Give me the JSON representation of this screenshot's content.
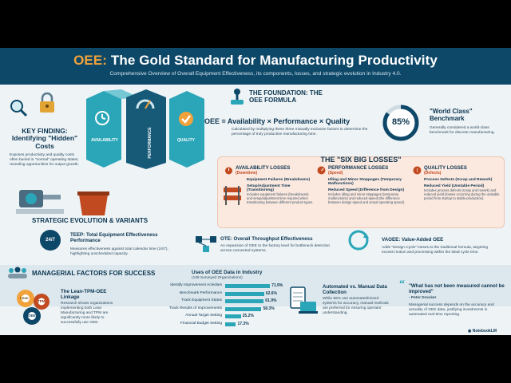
{
  "header": {
    "title_accent": "OEE:",
    "title_rest": "The Gold Standard for Manufacturing Productivity",
    "subtitle": "Comprehensive Overview of Overall Equipment Effectiveness, its components, losses, and strategic evolution in Industry 4.0."
  },
  "key_finding": {
    "title": "KEY FINDING: Identifying \"Hidden\" Costs",
    "text": "Exposes productivity and quality costs often buried in \"normal\" operating states, revealing opportunities for output growth."
  },
  "pillars": [
    "AVAILABILITY",
    "PERFORMANCE",
    "QUALITY"
  ],
  "foundation": {
    "title": "THE FOUNDATION: THE OEE FORMULA",
    "formula": "OEE = Availability × Performance × Quality",
    "text": "Calculated by multiplying these three mutually exclusive factors to determine the percentage of truly productive manufacturing time."
  },
  "world_class": {
    "value": "85%",
    "title": "\"World Class\" Benchmark",
    "text": "Generally considered a world-class benchmark for discrete manufacturing."
  },
  "losses": {
    "title": "THE \"SIX BIG LOSSES\"",
    "availability": {
      "title": "AVAILABILITY LOSSES",
      "sub": "(Downtime)",
      "item1": "Equipment Failures (Breakdowns)",
      "item2": "Setup/Adjustment Time (Transitioning)",
      "desc": "Includes equipment failures (breakdowns) and setup/adjustment time required when transitioning between different product types."
    },
    "performance": {
      "title": "PERFORMANCE LOSSES",
      "sub": "(Speed)",
      "item1": "Idling and Minor Stoppages (Temporary Malfunctions)",
      "item2": "Reduced Speed (Difference from Design)",
      "desc": "Includes idling and minor stoppages (temporary malfunctions) and reduced speed (the difference between design speed and actual operating speed)."
    },
    "quality": {
      "title": "QUALITY LOSSES",
      "sub": "(Defects)",
      "item1": "Process Defects (Scrap and Rework)",
      "item2": "Reduced Yield (Unstable Period)",
      "desc": "Includes process defects (scrap and rework) and reduced yield (losses occurring during the unstable period from startup to stable production)."
    }
  },
  "strategic": {
    "title": "STRATEGIC EVOLUTION & VARIANTS",
    "teep_badge": "24/7",
    "teep_title": "TEEP: Total Equipment Effectiveness Performance",
    "teep_text": "Measures effectiveness against total calendar time (24/7), highlighting unscheduled capacity.",
    "ote_title": "OTE: Overall Throughput Effectiveness",
    "ote_text": "An expansion of OEE to the factory level for bottleneck detection across connected systems.",
    "vaoee_title": "VAOEE: Value-Added OEE",
    "vaoee_text": "Adds \"Design Cycle\" losses to the traditional formula, targeting excess motion and processing within the ideal cycle time."
  },
  "managerial": {
    "title": "MANAGERIAL FACTORS FOR SUCCESS",
    "gear_labels": [
      "Lean",
      "TPM",
      "OEE"
    ],
    "linkage_title": "The Lean-TPM-OEE Linkage",
    "linkage_text": "Research shows organizations implementing both Lean Manufacturing and TPM are significantly more likely to successfully use OEE."
  },
  "chart_data": {
    "type": "bar",
    "title": "Uses of OEE Data in Industry",
    "subtitle": "(139 Surveyed Organizations)",
    "categories": [
      "Identify Improvement Activities",
      "Benchmark Performance",
      "Track Equipment Status",
      "Track Results of Improvements",
      "Annual Target Setting",
      "Financial Budget Setting"
    ],
    "values": [
      71.9,
      62.6,
      61.9,
      58.3,
      25.2,
      17.3
    ],
    "labels": [
      "71.9%",
      "62.6%",
      "61.9%",
      "58.3%",
      "25.2%",
      "17.3%"
    ],
    "xlim": [
      0,
      100
    ]
  },
  "automated": {
    "title": "Automated vs. Manual Data Collection",
    "text": "While 56% use automated/mixed systems for accuracy, manual methods are preferred for ensuring operator understanding."
  },
  "quote": {
    "text": "\"What has not been measured cannot be improved\"",
    "author": "- Peter Drucker",
    "body": "Managerial success depends on the accuracy and actuality of OEE data, justifying investments in automated real-time reporting."
  },
  "brand": "NotebookLM",
  "colors": {
    "navy": "#0e4868",
    "orange": "#f2a23a",
    "teal": "#2aa6b8",
    "loss_red": "#c24a20"
  }
}
